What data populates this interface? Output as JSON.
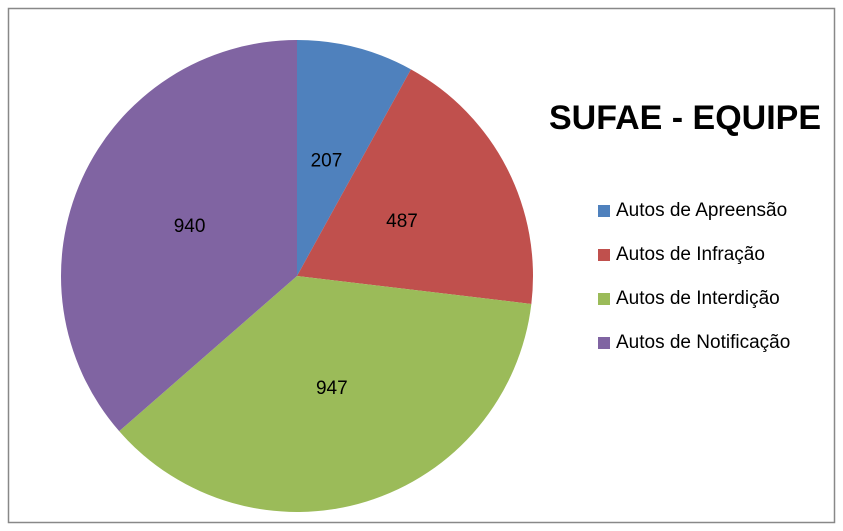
{
  "chart_data": {
    "type": "pie",
    "title": "SUFAE - EQUIPE",
    "categories": [
      "Autos de Apreensão",
      "Autos de Infração",
      "Autos de Interdição",
      "Autos de Notificação"
    ],
    "values": [
      207,
      487,
      947,
      940
    ],
    "colors": [
      "#4f81bd",
      "#c0504d",
      "#9bbb59",
      "#8064a2"
    ],
    "legend": "right"
  }
}
